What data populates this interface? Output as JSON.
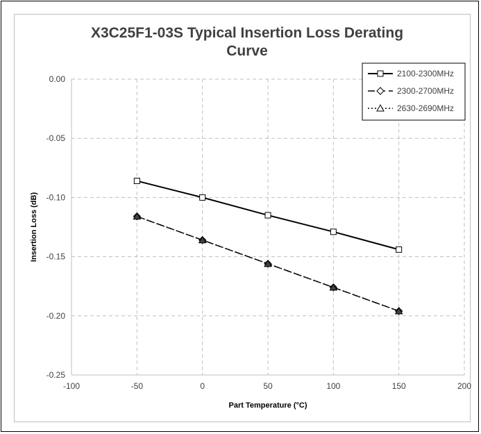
{
  "chart_data": {
    "type": "line",
    "title_line1": "X3C25F1-03S Typical Insertion Loss Derating",
    "title_line2": "Curve",
    "xlabel": "Part Temperature (°C)",
    "ylabel": "Insertion Loss (dB)",
    "xlim": [
      -100,
      200
    ],
    "ylim": [
      -0.25,
      0.0
    ],
    "x_ticks": [
      -100,
      -50,
      0,
      50,
      100,
      150,
      200
    ],
    "y_ticks": [
      0.0,
      -0.05,
      -0.1,
      -0.15,
      -0.2,
      -0.25
    ],
    "x_tick_labels": [
      "-100",
      "-50",
      "0",
      "50",
      "100",
      "150",
      "200"
    ],
    "y_tick_labels": [
      "0.00",
      "-0.05",
      "-0.10",
      "-0.15",
      "-0.20",
      "-0.25"
    ],
    "grid": true,
    "legend_position": "top-right",
    "series": [
      {
        "name": "2100-2300MHz",
        "marker": "square",
        "line_style": "solid",
        "x": [
          -50,
          0,
          50,
          100,
          150
        ],
        "y": [
          -0.086,
          -0.1,
          -0.115,
          -0.129,
          -0.144
        ]
      },
      {
        "name": "2300-2700MHz",
        "marker": "diamond",
        "line_style": "dashed",
        "x": [
          -50,
          0,
          50,
          100,
          150
        ],
        "y": [
          -0.116,
          -0.136,
          -0.156,
          -0.176,
          -0.196
        ]
      },
      {
        "name": "2630-2690MHz",
        "marker": "triangle",
        "line_style": "dotted",
        "x": [
          -50,
          0,
          50,
          100,
          150
        ],
        "y": [
          -0.116,
          -0.136,
          -0.156,
          -0.176,
          -0.196
        ]
      }
    ]
  }
}
